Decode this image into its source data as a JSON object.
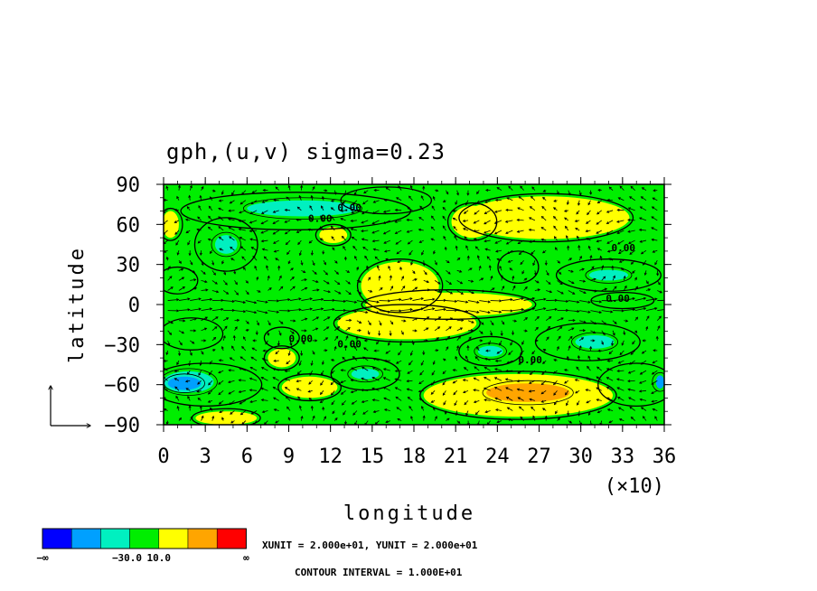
{
  "chart_data": {
    "type": "heatmap",
    "title": "gph,(u,v) sigma=0.23",
    "xlabel": "longitude",
    "ylabel": "latitude",
    "xlim": [
      0,
      360
    ],
    "ylim": [
      -90,
      90
    ],
    "x_ticks": [
      "0",
      "3",
      "6",
      "9",
      "12",
      "15",
      "18",
      "21",
      "24",
      "27",
      "30",
      "33",
      "36"
    ],
    "x_multiplier": "(×10)",
    "y_ticks": [
      "90",
      "60",
      "30",
      "0",
      "−30",
      "−60",
      "−90"
    ],
    "contour_labels": [
      "0.00",
      "0.00",
      "0.00",
      "0.00",
      "0.00",
      "0.00",
      "0.00"
    ],
    "colorbar": {
      "colors": [
        "#0000ff",
        "#00a0ff",
        "#00f0c0",
        "#00ee00",
        "#ffff00",
        "#ffa500",
        "#ff0000"
      ],
      "labels": [
        "−∞",
        "−30.0",
        "10.0",
        "∞"
      ]
    },
    "units_text": "XUNIT = 2.000e+01, YUNIT = 2.000e+01",
    "contour_interval": "CONTOUR INTERVAL = 1.000E+01",
    "regions": [
      {
        "level": "20",
        "lon": 275,
        "lat": 65,
        "rlon": 60,
        "rlat": 16
      },
      {
        "level": "20",
        "lon": 222,
        "lat": 62,
        "rlon": 15,
        "rlat": 12
      },
      {
        "level": "20",
        "lon": 170,
        "lat": 14,
        "rlon": 28,
        "rlat": 18
      },
      {
        "level": "20",
        "lon": 205,
        "lat": 0,
        "rlon": 60,
        "rlat": 9
      },
      {
        "level": "20",
        "lon": 175,
        "lat": -14,
        "rlon": 50,
        "rlat": 12
      },
      {
        "level": "20",
        "lon": 122,
        "lat": 52,
        "rlon": 10,
        "rlat": 6
      },
      {
        "level": "20",
        "lon": 255,
        "lat": -68,
        "rlon": 68,
        "rlat": 16
      },
      {
        "level": "20",
        "lon": 85,
        "lat": -40,
        "rlon": 10,
        "rlat": 7
      },
      {
        "level": "20",
        "lon": 105,
        "lat": -62,
        "rlon": 20,
        "rlat": 8
      },
      {
        "level": "20",
        "lon": 45,
        "lat": -85,
        "rlon": 22,
        "rlat": 5
      },
      {
        "level": "20",
        "lon": 5,
        "lat": 60,
        "rlon": 6,
        "rlat": 10
      },
      {
        "level": "30",
        "lon": 262,
        "lat": -66,
        "rlon": 30,
        "rlat": 7
      },
      {
        "level": "0",
        "lon": 95,
        "lat": 70,
        "rlon": 80,
        "rlat": 12
      },
      {
        "level": "0",
        "lon": 45,
        "lat": 45,
        "rlon": 20,
        "rlat": 18
      },
      {
        "level": "0",
        "lon": 160,
        "lat": 78,
        "rlon": 30,
        "rlat": 8
      },
      {
        "level": "0",
        "lon": 10,
        "lat": 18,
        "rlon": 12,
        "rlat": 8
      },
      {
        "level": "0",
        "lon": 255,
        "lat": 28,
        "rlon": 12,
        "rlat": 10
      },
      {
        "level": "0",
        "lon": 320,
        "lat": 22,
        "rlon": 35,
        "rlat": 10
      },
      {
        "level": "0",
        "lon": 330,
        "lat": 3,
        "rlon": 20,
        "rlat": 4
      },
      {
        "level": "0",
        "lon": 20,
        "lat": -22,
        "rlon": 20,
        "rlat": 10
      },
      {
        "level": "0",
        "lon": 235,
        "lat": -35,
        "rlon": 20,
        "rlat": 9
      },
      {
        "level": "0",
        "lon": 305,
        "lat": -28,
        "rlon": 35,
        "rlat": 12
      },
      {
        "level": "0",
        "lon": 145,
        "lat": -52,
        "rlon": 22,
        "rlat": 10
      },
      {
        "level": "0",
        "lon": 30,
        "lat": -60,
        "rlon": 38,
        "rlat": 14
      },
      {
        "level": "0",
        "lon": 340,
        "lat": -60,
        "rlon": 25,
        "rlat": 14
      },
      {
        "level": "0",
        "lon": 85,
        "lat": -25,
        "rlon": 10,
        "rlat": 6
      },
      {
        "level": "-20",
        "lon": 100,
        "lat": 72,
        "rlon": 40,
        "rlat": 6
      },
      {
        "level": "-20",
        "lon": 18,
        "lat": -58,
        "rlon": 18,
        "rlat": 8
      },
      {
        "level": "-20",
        "lon": 45,
        "lat": 45,
        "rlon": 8,
        "rlat": 7
      },
      {
        "level": "-20",
        "lon": 145,
        "lat": -52,
        "rlon": 10,
        "rlat": 4
      },
      {
        "level": "-20",
        "lon": 235,
        "lat": -35,
        "rlon": 9,
        "rlat": 4
      },
      {
        "level": "-20",
        "lon": 310,
        "lat": -28,
        "rlon": 14,
        "rlat": 5
      },
      {
        "level": "-20",
        "lon": 320,
        "lat": 22,
        "rlon": 14,
        "rlat": 4
      },
      {
        "level": "-30",
        "lon": 15,
        "lat": -59,
        "rlon": 12,
        "rlat": 5
      },
      {
        "level": "-30",
        "lon": 357,
        "lat": -58,
        "rlon": 3,
        "rlat": 5
      }
    ]
  }
}
